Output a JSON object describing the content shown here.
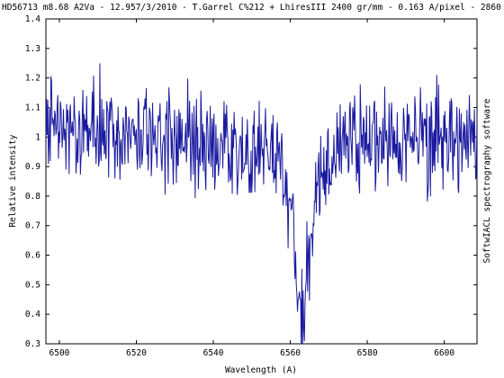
{
  "chart_data": {
    "type": "line",
    "title": "HD56713 m8.68 A2Va - 12.957/3/2010 - T.Garrel C%212 + LhiresIII 2400 gr/mm - 0.163 A/pixel - 2860 s",
    "xlabel": "Wavelength (A)",
    "ylabel": "Relative intensity",
    "right_label": "SoftwIACL spectrography software",
    "xlim": [
      6496.5,
      6608.5
    ],
    "ylim": [
      0.3,
      1.4
    ],
    "x_ticks": [
      "6500",
      "6520",
      "6540",
      "6560",
      "6580",
      "6600"
    ],
    "y_ticks": [
      "0.3",
      "0.4",
      "0.5",
      "0.6",
      "0.7",
      "0.8",
      "0.9",
      "1",
      "1.1",
      "1.2",
      "1.3",
      "1.4"
    ],
    "grid": false,
    "series": [
      {
        "color": "#1a1aa0",
        "x_start": 6496.5,
        "x_step": 0.163,
        "anchors": [
          [
            6496.5,
            1.0
          ],
          [
            6498.0,
            1.08
          ],
          [
            6500.0,
            1.02
          ],
          [
            6505.0,
            1.04
          ],
          [
            6510.0,
            1.03
          ],
          [
            6515.0,
            1.0
          ],
          [
            6520.0,
            1.0
          ],
          [
            6525.0,
            1.01
          ],
          [
            6530.0,
            1.0
          ],
          [
            6535.0,
            0.99
          ],
          [
            6540.0,
            0.99
          ],
          [
            6545.0,
            0.95
          ],
          [
            6548.0,
            0.93
          ],
          [
            6552.0,
            0.95
          ],
          [
            6555.0,
            0.93
          ],
          [
            6558.0,
            0.88
          ],
          [
            6560.0,
            0.76
          ],
          [
            6561.0,
            0.64
          ],
          [
            6562.0,
            0.5
          ],
          [
            6562.8,
            0.42
          ],
          [
            6563.5,
            0.44
          ],
          [
            6564.5,
            0.55
          ],
          [
            6566.0,
            0.74
          ],
          [
            6568.0,
            0.86
          ],
          [
            6570.0,
            0.93
          ],
          [
            6575.0,
            0.97
          ],
          [
            6580.0,
            0.99
          ],
          [
            6585.0,
            1.0
          ],
          [
            6590.0,
            1.0
          ],
          [
            6595.0,
            1.0
          ],
          [
            6600.0,
            1.0
          ],
          [
            6605.0,
            0.99
          ],
          [
            6608.5,
            0.98
          ]
        ],
        "noise_amplitude": 0.085,
        "noise_seed": 56713
      }
    ]
  }
}
